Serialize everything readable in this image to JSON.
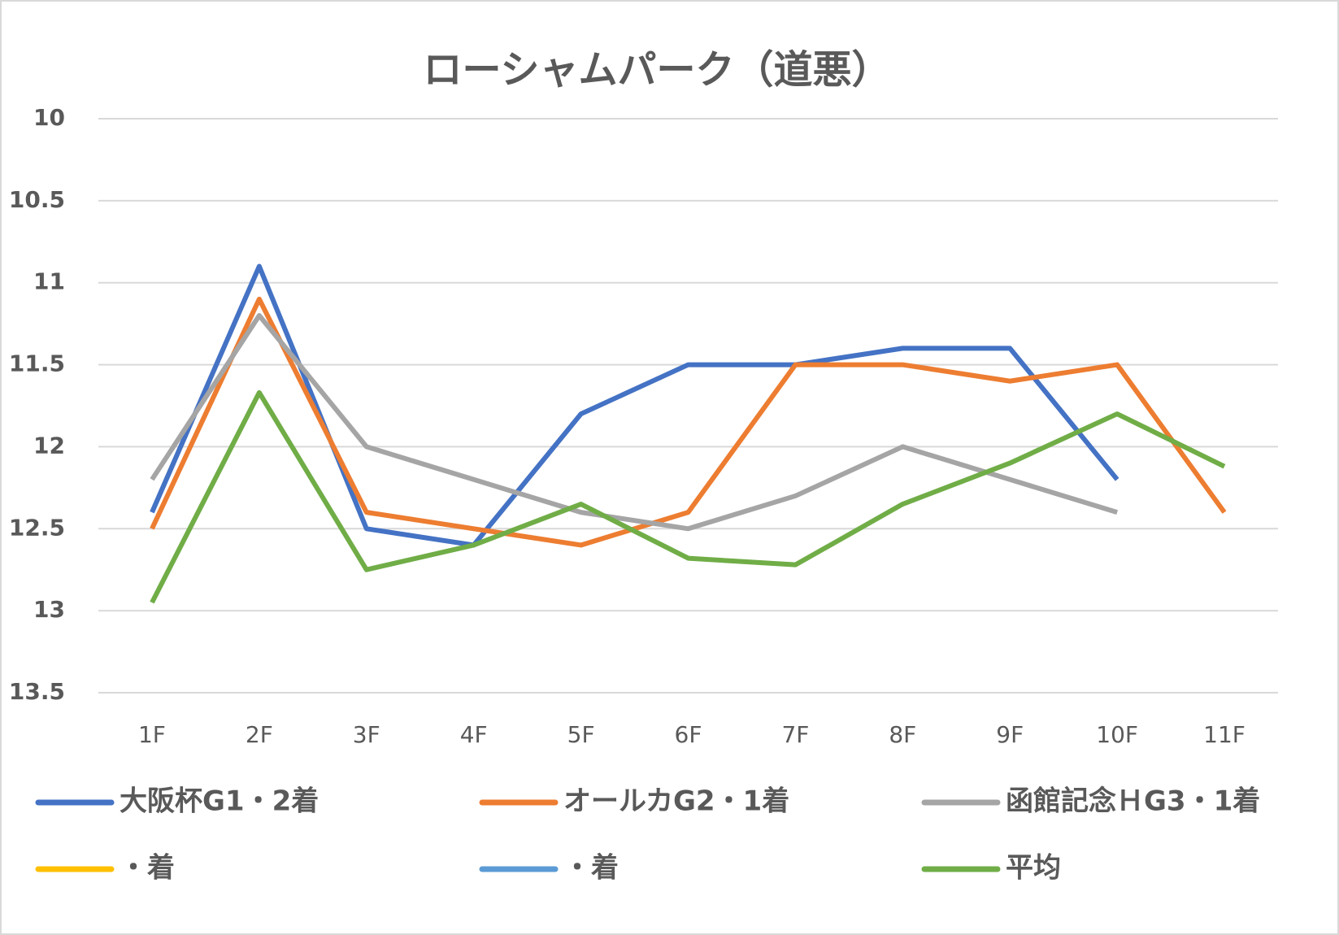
{
  "chart_data": {
    "type": "line",
    "title": "ローシャムパーク（道悪）",
    "categories": [
      "1F",
      "2F",
      "3F",
      "4F",
      "5F",
      "6F",
      "7F",
      "8F",
      "9F",
      "10F",
      "11F"
    ],
    "series": [
      {
        "name": "大阪杯G1・2着",
        "color": "#4472c4",
        "values": [
          12.4,
          10.9,
          12.5,
          12.6,
          11.8,
          11.5,
          11.5,
          11.4,
          11.4,
          12.2,
          null
        ]
      },
      {
        "name": "オールカG2・1着",
        "color": "#ed7d31",
        "values": [
          12.5,
          11.1,
          12.4,
          12.5,
          12.6,
          12.4,
          11.5,
          11.5,
          11.6,
          11.5,
          12.4
        ]
      },
      {
        "name": "函館記念ＨG3・1着",
        "color": "#a5a5a5",
        "values": [
          12.2,
          11.2,
          12.0,
          12.2,
          12.4,
          12.5,
          12.3,
          12.0,
          12.2,
          12.4,
          null
        ]
      },
      {
        "name": "・着",
        "color": "#ffc000",
        "values": [
          null,
          null,
          null,
          null,
          null,
          null,
          null,
          null,
          null,
          null,
          null
        ]
      },
      {
        "name": "・着",
        "color": "#5b9bd5",
        "values": [
          null,
          null,
          null,
          null,
          null,
          null,
          null,
          null,
          null,
          null,
          null
        ]
      },
      {
        "name": "平均",
        "color": "#70ad47",
        "values": [
          12.95,
          11.67,
          12.75,
          12.6,
          12.35,
          12.68,
          12.72,
          12.35,
          12.1,
          11.8,
          12.12
        ]
      }
    ],
    "ylim": [
      10,
      13.5
    ],
    "y_inverted": true,
    "yticks": [
      10,
      10.5,
      11,
      11.5,
      12,
      12.5,
      13,
      13.5
    ],
    "grid": true,
    "legend": "bottom"
  }
}
